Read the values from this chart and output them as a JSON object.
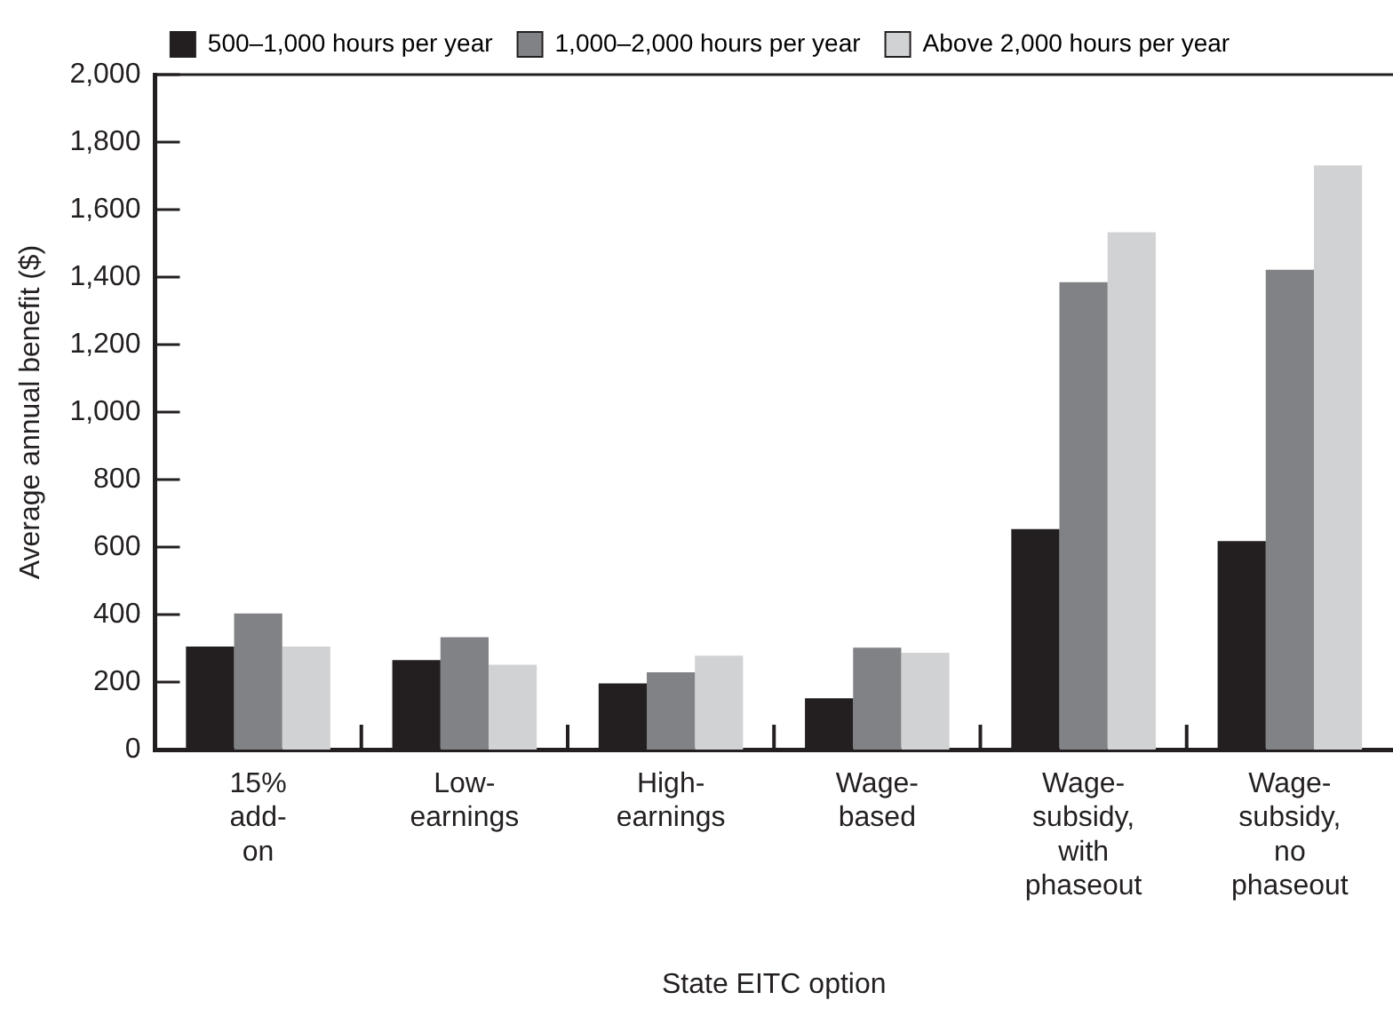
{
  "chart_data": {
    "type": "bar",
    "xlabel": "State EITC option",
    "ylabel": "Average annual benefit ($)",
    "categories": [
      "15% add-on",
      "Low-earnings",
      "High-earnings",
      "Wage-based",
      "Wage-subsidy, with phaseout",
      "Wage-subsidy, no phaseout"
    ],
    "series": [
      {
        "name": "500–1,000 hours per year",
        "color": "#231f20",
        "values": [
          305,
          265,
          196,
          152,
          653,
          618
        ]
      },
      {
        "name": "1,000–2,000 hours per year",
        "color": "#818285",
        "values": [
          403,
          333,
          229,
          302,
          1385,
          1422
        ]
      },
      {
        "name": "Above 2,000 hours per year",
        "color": "#d1d2d4",
        "values": [
          305,
          251,
          278,
          287,
          1533,
          1731
        ]
      }
    ],
    "ylim": [
      0,
      2000
    ],
    "yticks": [
      0,
      200,
      400,
      600,
      800,
      {
        "value": 1000,
        "label": "1,000"
      },
      {
        "value": 1200,
        "label": "1,200"
      },
      {
        "value": 1400,
        "label": "1,400"
      },
      {
        "value": 1600,
        "label": "1,600"
      },
      {
        "value": 1800,
        "label": "1,800"
      },
      {
        "value": 2000,
        "label": "2,000"
      }
    ],
    "grid": false,
    "legend": "top"
  }
}
